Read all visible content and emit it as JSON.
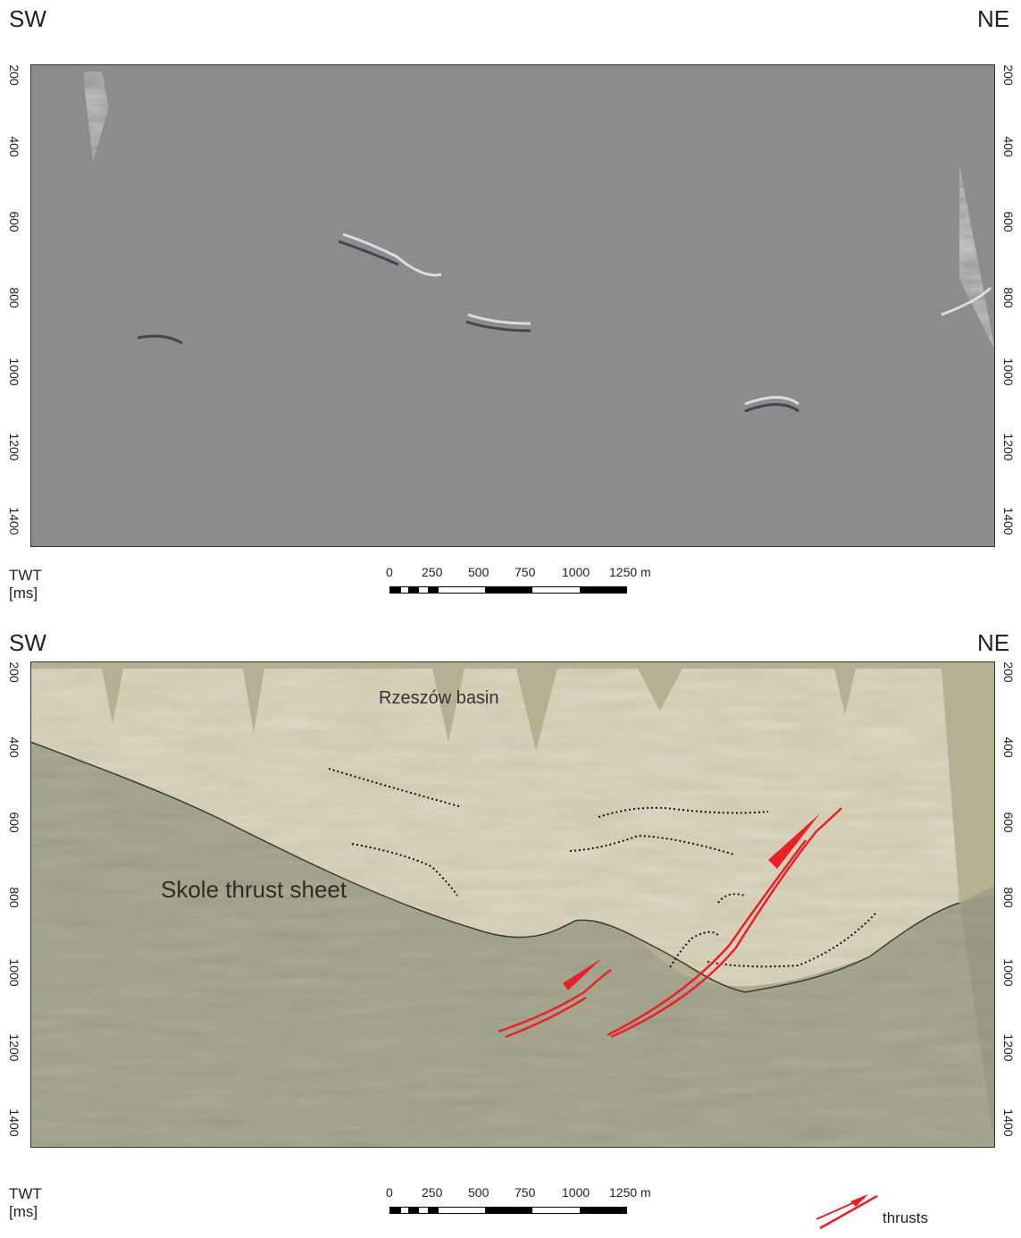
{
  "panels": [
    {
      "id": "top",
      "left_label": "SW",
      "right_label": "NE",
      "axis_title": "TWT",
      "axis_unit": "[ms]",
      "y_ticks": [
        "200",
        "400",
        "600",
        "800",
        "1000",
        "1200",
        "1400"
      ],
      "scale_labels": [
        "0",
        "250",
        "500",
        "750",
        "1000",
        "1250 m"
      ]
    },
    {
      "id": "bottom",
      "left_label": "SW",
      "right_label": "NE",
      "axis_title": "TWT",
      "axis_unit": "[ms]",
      "y_ticks": [
        "200",
        "400",
        "600",
        "800",
        "1000",
        "1200",
        "1400"
      ],
      "scale_labels": [
        "0",
        "250",
        "500",
        "750",
        "1000",
        "1250 m"
      ],
      "basin_label": "Rzeszów basin",
      "sheet_label": "Skole thrust sheet",
      "legend_label": "thrusts"
    }
  ],
  "colors": {
    "seismic_bg": "#8e9193",
    "basin_fill": "#e6dcc0",
    "sheet_fill": "#8b8d78",
    "thrust": "#e8202a",
    "blank": "#8a8c8e",
    "blank_bottom": "#b5af93"
  }
}
